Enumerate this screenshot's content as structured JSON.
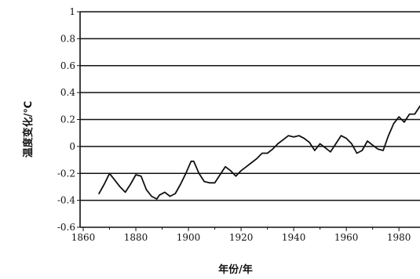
{
  "chart_data": {
    "type": "line",
    "title": "",
    "xlabel": "年份/年",
    "ylabel": "温度变化/℃",
    "xlim": [
      1860,
      1988
    ],
    "ylim": [
      -0.6,
      1
    ],
    "grid": true,
    "x_ticks": [
      1860,
      1880,
      1900,
      1920,
      1940,
      1960,
      1980
    ],
    "y_ticks": [
      1,
      0.8,
      0.6,
      0.4,
      0.2,
      0,
      -0.2,
      -0.4,
      -0.6
    ],
    "y_tick_labels": [
      "1",
      "0.8",
      "0.6",
      "0.4",
      "0.2",
      "0",
      "-0.2",
      "-0.4",
      "-0.6"
    ],
    "series": [
      {
        "color": "#111111",
        "x": [
          1866,
          1868,
          1870,
          1872,
          1874,
          1876,
          1878,
          1880,
          1882,
          1884,
          1886,
          1888,
          1889,
          1891,
          1893,
          1895,
          1897,
          1899,
          1901,
          1902,
          1904,
          1906,
          1908,
          1910,
          1912,
          1914,
          1916,
          1918,
          1920,
          1922,
          1924,
          1926,
          1928,
          1930,
          1932,
          1934,
          1936,
          1938,
          1940,
          1942,
          1944,
          1946,
          1948,
          1950,
          1952,
          1954,
          1956,
          1958,
          1960,
          1962,
          1964,
          1966,
          1968,
          1970,
          1972,
          1974,
          1976,
          1978,
          1980,
          1982,
          1984,
          1986,
          1988
        ],
        "y": [
          -0.35,
          -0.28,
          -0.2,
          -0.25,
          -0.3,
          -0.34,
          -0.28,
          -0.21,
          -0.22,
          -0.32,
          -0.37,
          -0.39,
          -0.36,
          -0.34,
          -0.37,
          -0.35,
          -0.28,
          -0.2,
          -0.11,
          -0.11,
          -0.2,
          -0.26,
          -0.27,
          -0.27,
          -0.21,
          -0.15,
          -0.18,
          -0.22,
          -0.18,
          -0.15,
          -0.12,
          -0.09,
          -0.05,
          -0.05,
          -0.02,
          0.02,
          0.05,
          0.08,
          0.07,
          0.08,
          0.06,
          0.03,
          -0.03,
          0.02,
          -0.01,
          -0.04,
          0.02,
          0.08,
          0.06,
          0.02,
          -0.05,
          -0.03,
          0.04,
          0.01,
          -0.02,
          -0.03,
          0.08,
          0.17,
          0.22,
          0.18,
          0.24,
          0.24,
          0.3
        ]
      }
    ]
  }
}
